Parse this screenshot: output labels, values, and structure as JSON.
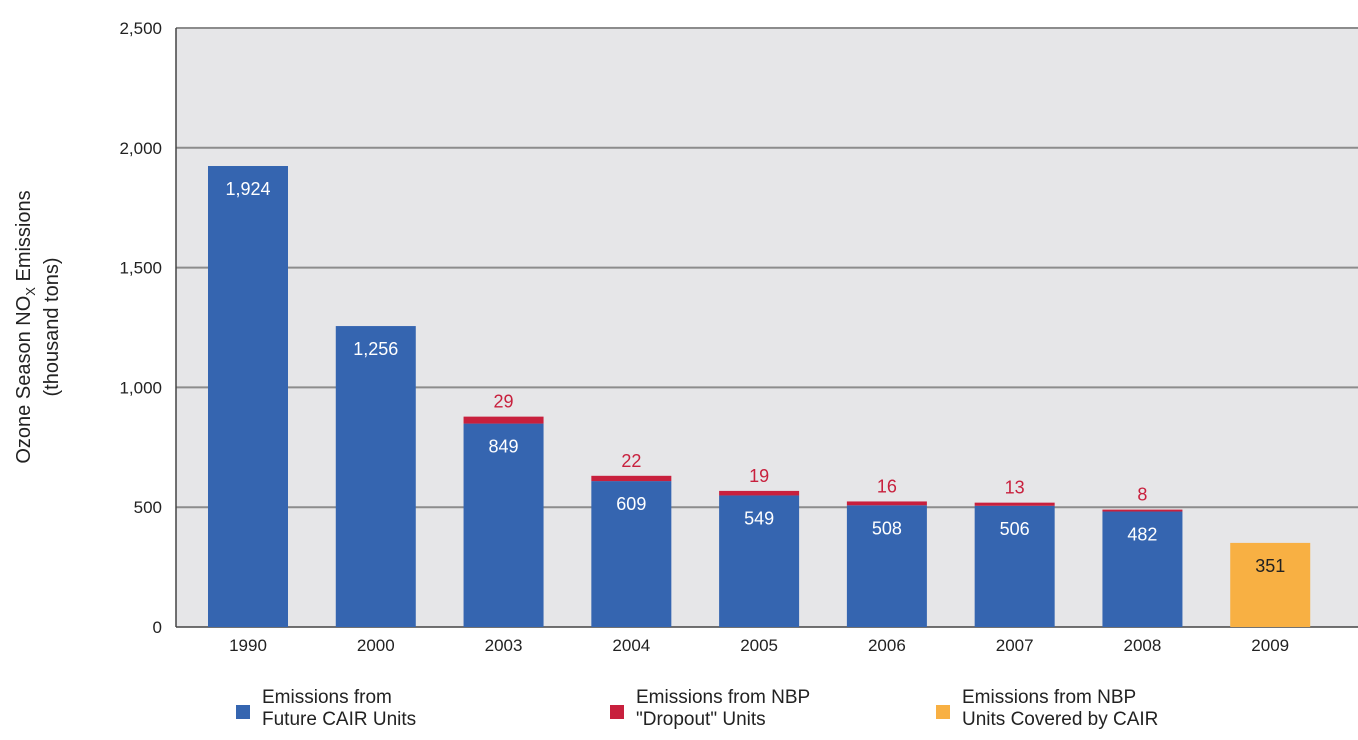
{
  "chart_data": {
    "type": "bar",
    "stacked": true,
    "ylabel_line1": "Ozone Season NO",
    "ylabel_sub": "X",
    "ylabel_line1_end": "  Emissions",
    "ylabel_line2": "(thousand tons)",
    "ylim": [
      0,
      2500
    ],
    "yticks": [
      0,
      500,
      1000,
      1500,
      2000,
      2500
    ],
    "ytick_labels": [
      "0",
      "500",
      "1,000",
      "1,500",
      "2,000",
      "2,500"
    ],
    "grid": true,
    "legend_position": "bottom",
    "categories": [
      "1990",
      "2000",
      "2003",
      "2004",
      "2005",
      "2006",
      "2007",
      "2008",
      "2009"
    ],
    "series": [
      {
        "name": "Emissions from Future CAIR Units",
        "name_lines": [
          "Emissions from",
          "Future CAIR Units"
        ],
        "color": "#3565b0",
        "label_color": "#ffffff",
        "values": [
          1924,
          1256,
          849,
          609,
          549,
          508,
          506,
          482,
          null
        ],
        "labels": [
          "1,924",
          "1,256",
          "849",
          "609",
          "549",
          "508",
          "506",
          "482",
          ""
        ]
      },
      {
        "name": "Emissions from NBP \"Dropout\" Units",
        "name_lines": [
          "Emissions from NBP",
          "\"Dropout\" Units"
        ],
        "color": "#c8203d",
        "label_color": "#c8203d",
        "values": [
          null,
          null,
          29,
          22,
          19,
          16,
          13,
          8,
          null
        ],
        "labels": [
          "",
          "",
          "29",
          "22",
          "19",
          "16",
          "13",
          "8",
          ""
        ]
      },
      {
        "name": "Emissions from NBP Units Covered by CAIR",
        "name_lines": [
          "Emissions from NBP",
          "Units Covered by CAIR"
        ],
        "color": "#f8b043",
        "label_color": "#222222",
        "values": [
          null,
          null,
          null,
          null,
          null,
          null,
          null,
          null,
          351
        ],
        "labels": [
          "",
          "",
          "",
          "",
          "",
          "",
          "",
          "",
          "351"
        ]
      }
    ],
    "colors": {
      "plot_bg": "#e6e6e8",
      "grid": "#8c8c8c",
      "axis": "#444444"
    }
  }
}
